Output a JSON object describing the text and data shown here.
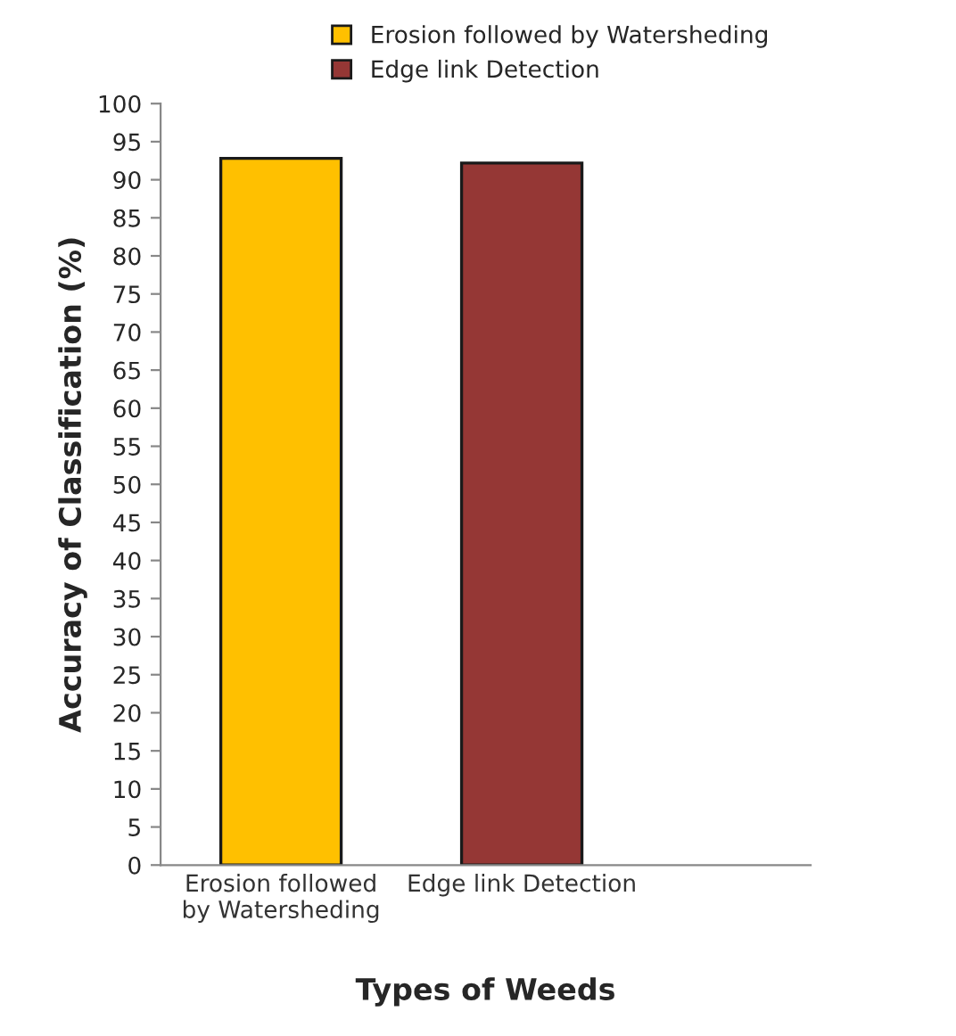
{
  "chart_data": {
    "type": "bar",
    "xlabel": "Types of Weeds",
    "ylabel": "Accuracy of Classification (%)",
    "categories": [
      "Erosion followed\nby Watersheding",
      "Edge link Detection"
    ],
    "series": [
      {
        "name": "Erosion followed by Watersheding",
        "color": "#ffc000",
        "values": [
          92.8,
          null
        ]
      },
      {
        "name": "Edge link Detection",
        "color": "#953735",
        "values": [
          null,
          92.2
        ]
      }
    ],
    "ylim": [
      0,
      100
    ],
    "yticks": [
      0,
      5,
      10,
      15,
      20,
      25,
      30,
      35,
      40,
      45,
      50,
      55,
      60,
      65,
      70,
      75,
      80,
      85,
      90,
      95,
      100
    ],
    "grid": false,
    "legend": "top"
  }
}
